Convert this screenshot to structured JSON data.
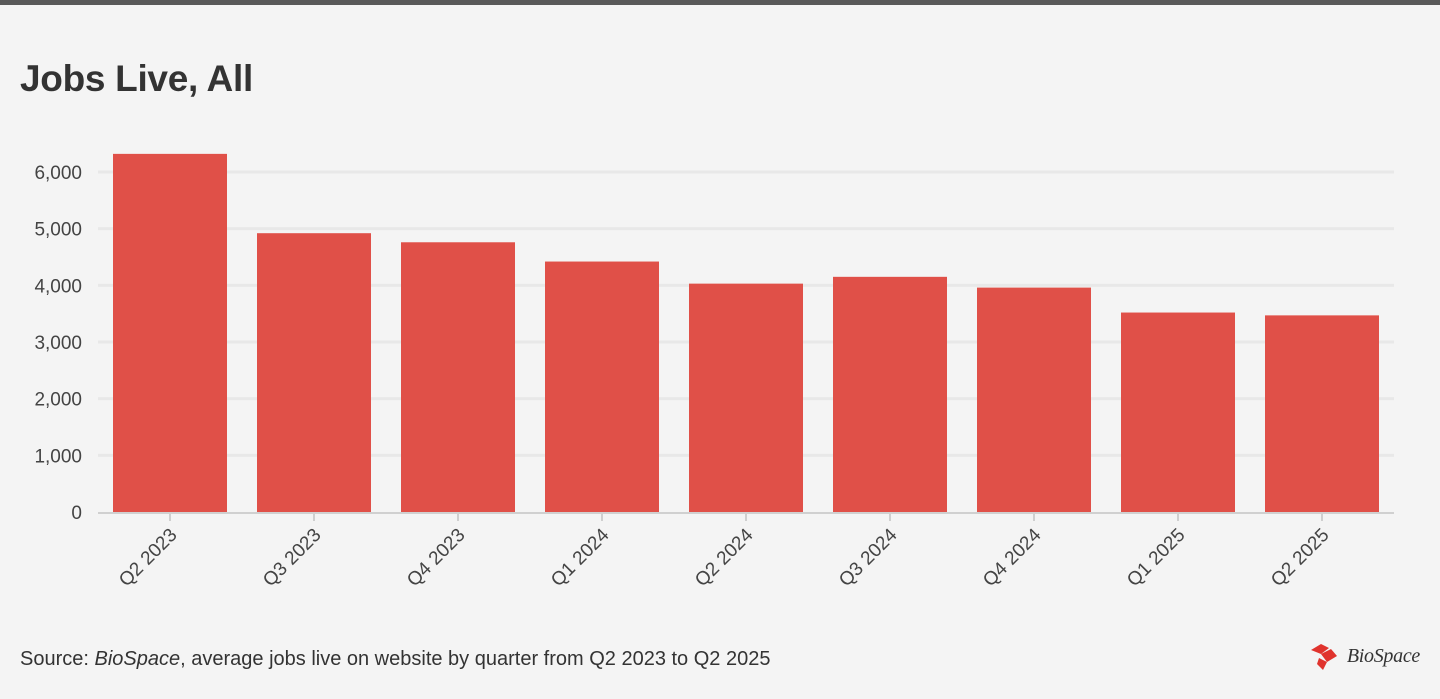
{
  "chart_data": {
    "type": "bar",
    "title": "Jobs Live, All",
    "categories": [
      "Q2 2023",
      "Q3 2023",
      "Q4 2023",
      "Q1 2024",
      "Q2 2024",
      "Q3 2024",
      "Q4 2024",
      "Q1 2025",
      "Q2 2025"
    ],
    "values": [
      6320,
      4920,
      4760,
      4420,
      4030,
      4150,
      3960,
      3520,
      3470
    ],
    "ylim": [
      0,
      6500
    ],
    "yticks": [
      0,
      1000,
      2000,
      3000,
      4000,
      5000,
      6000
    ],
    "ytick_labels": [
      "0",
      "1,000",
      "2,000",
      "3,000",
      "4,000",
      "5,000",
      "6,000"
    ],
    "xlabel": "",
    "ylabel": "",
    "grid": true,
    "bar_color": "#e05048",
    "grid_color": "#e8e8e8"
  },
  "footer": {
    "source_prefix": "Source:",
    "source_name": "BioSpace",
    "source_rest": ", average jobs live on website by quarter from Q2 2023 to Q2 2025"
  },
  "logo": {
    "text": "BioSpace",
    "icon": "biospace-logo-icon",
    "color": "#e0332d"
  }
}
